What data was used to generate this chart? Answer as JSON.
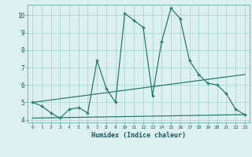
{
  "line1_x": [
    0,
    1,
    2,
    3,
    4,
    5,
    6,
    7,
    8,
    9,
    10,
    11,
    12,
    13,
    14,
    15,
    16,
    17,
    18,
    19,
    20,
    21,
    22,
    23
  ],
  "line1_y": [
    5.0,
    4.8,
    4.4,
    4.1,
    4.6,
    4.7,
    4.4,
    7.4,
    5.8,
    5.0,
    10.1,
    9.7,
    9.3,
    5.4,
    8.5,
    10.4,
    9.8,
    7.4,
    6.6,
    6.1,
    6.0,
    5.5,
    4.6,
    4.3
  ],
  "line2_x": [
    0,
    23
  ],
  "line2_y": [
    4.1,
    4.3
  ],
  "line3_x": [
    0,
    23
  ],
  "line3_y": [
    5.0,
    6.6
  ],
  "color": "#2a7a6a",
  "bg_color": "#ddf0f0",
  "grid_color": "#aad8d0",
  "xlabel": "Humidex (Indice chaleur)",
  "xlim": [
    -0.5,
    23.5
  ],
  "ylim": [
    3.85,
    10.6
  ],
  "yticks": [
    4,
    5,
    6,
    7,
    8,
    9,
    10
  ],
  "xticks": [
    0,
    1,
    2,
    3,
    4,
    5,
    6,
    7,
    8,
    9,
    10,
    11,
    12,
    13,
    14,
    15,
    16,
    17,
    18,
    19,
    20,
    21,
    22,
    23
  ]
}
